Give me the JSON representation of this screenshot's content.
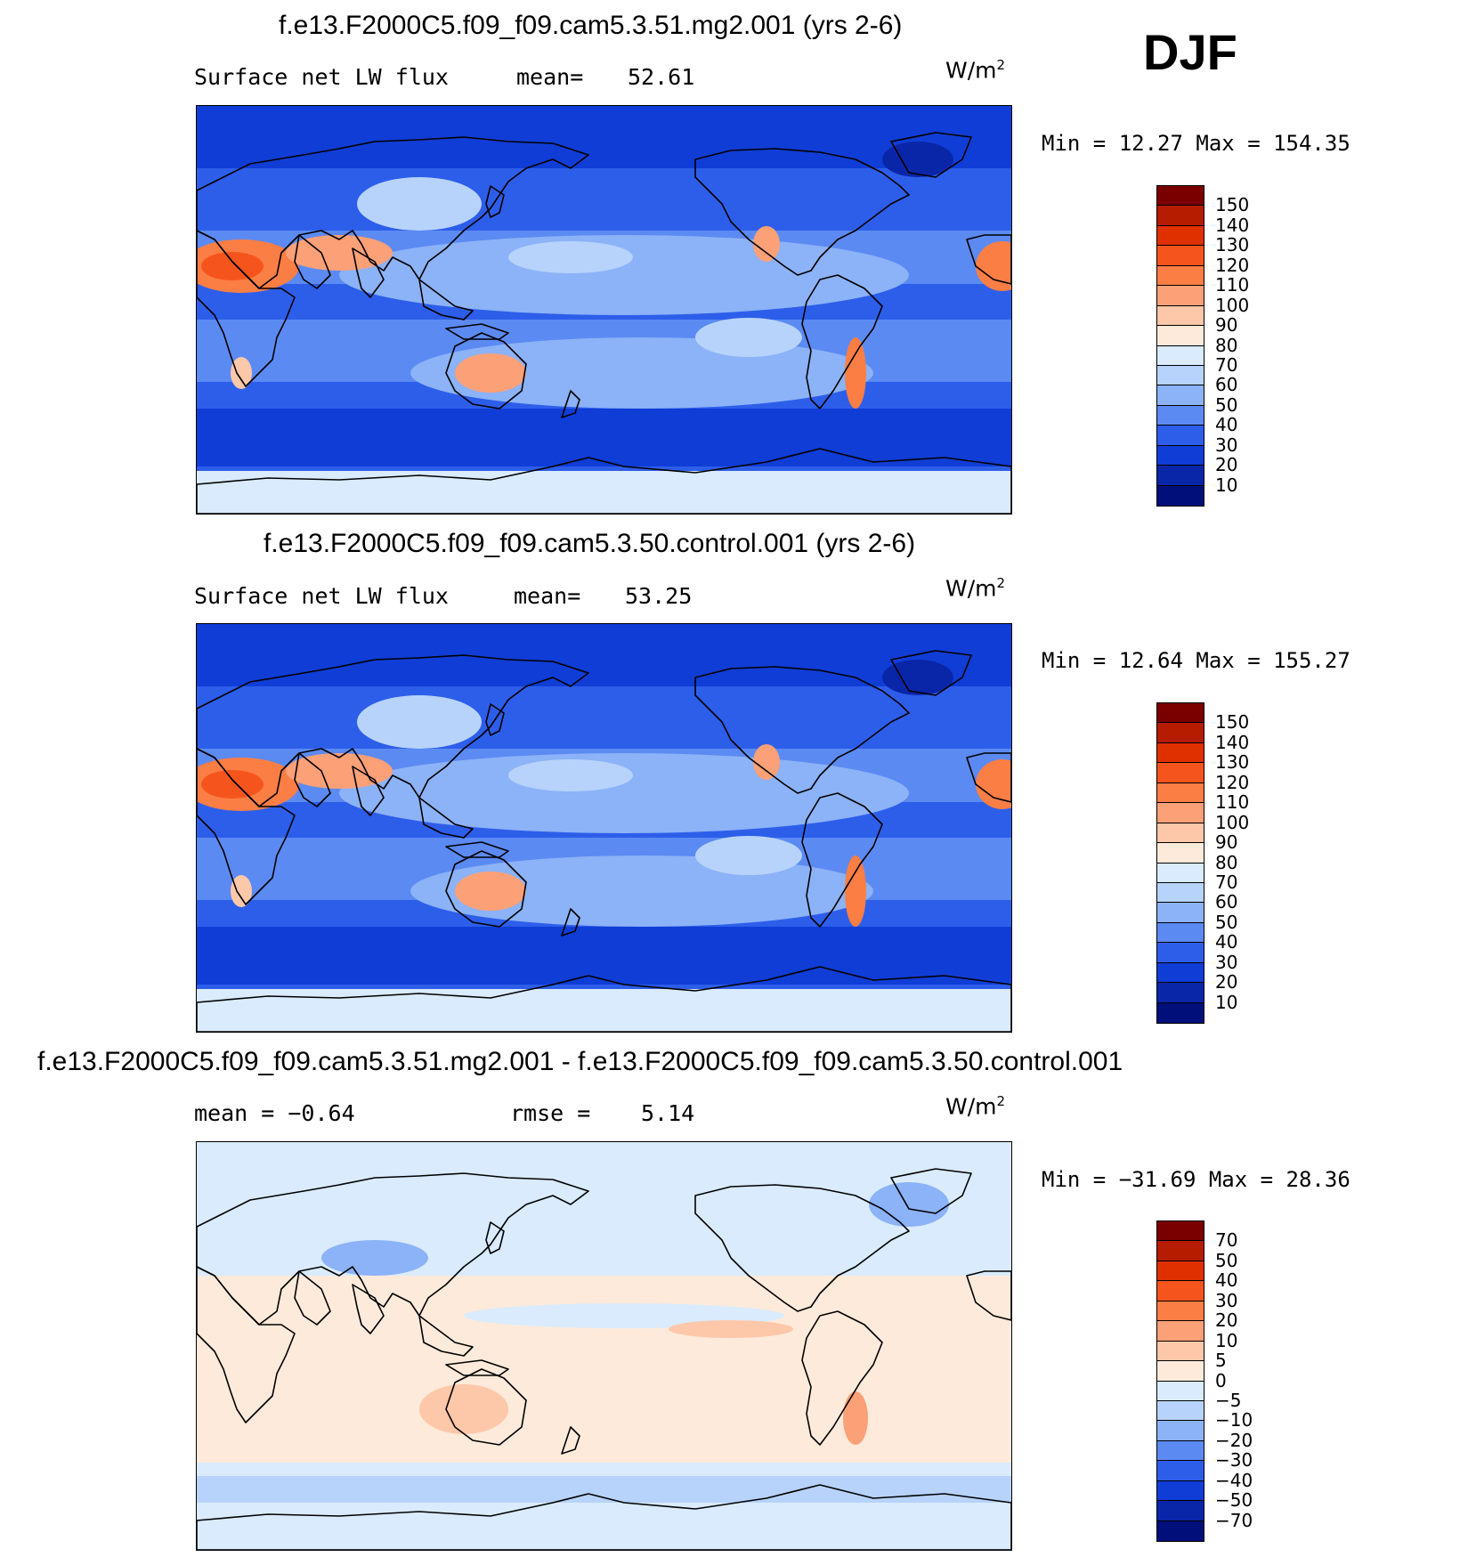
{
  "season": "DJF",
  "panels": [
    {
      "title": "f.e13.F2000C5.f09_f09.cam5.3.51.mg2.001 (yrs 2-6)",
      "left_label": "Surface net LW flux",
      "stat_label": "mean=",
      "stat_value": "52.61",
      "units": "W/m",
      "units_exp": "2",
      "minmax": "Min =   12.27 Max = 154.35",
      "colorbar_ticks": [
        "150",
        "140",
        "130",
        "120",
        "110",
        "100",
        "90",
        "80",
        "70",
        "60",
        "50",
        "40",
        "30",
        "20",
        "10"
      ],
      "colorbar_colors": [
        "#7a0000",
        "#b51c00",
        "#e03000",
        "#f5551c",
        "#fb7e44",
        "#fca077",
        "#fdc7a9",
        "#fdeadb",
        "#d9ebfc",
        "#b7d3fb",
        "#8cb2f7",
        "#5b8af2",
        "#2d5eea",
        "#0f3dd6",
        "#0a26a8",
        "#010f7a"
      ]
    },
    {
      "title": "f.e13.F2000C5.f09_f09.cam5.3.50.control.001 (yrs 2-6)",
      "left_label": "Surface net LW flux",
      "stat_label": "mean=",
      "stat_value": "53.25",
      "units": "W/m",
      "units_exp": "2",
      "minmax": "Min =   12.64 Max = 155.27",
      "colorbar_ticks": [
        "150",
        "140",
        "130",
        "120",
        "110",
        "100",
        "90",
        "80",
        "70",
        "60",
        "50",
        "40",
        "30",
        "20",
        "10"
      ],
      "colorbar_colors": [
        "#7a0000",
        "#b51c00",
        "#e03000",
        "#f5551c",
        "#fb7e44",
        "#fca077",
        "#fdc7a9",
        "#fdeadb",
        "#d9ebfc",
        "#b7d3fb",
        "#8cb2f7",
        "#5b8af2",
        "#2d5eea",
        "#0f3dd6",
        "#0a26a8",
        "#010f7a"
      ]
    },
    {
      "title": "f.e13.F2000C5.f09_f09.cam5.3.51.mg2.001 - f.e13.F2000C5.f09_f09.cam5.3.50.control.001",
      "left_label": "mean =   −0.64",
      "stat_label": "rmse =",
      "stat_value": "5.14",
      "units": "W/m",
      "units_exp": "2",
      "minmax": "Min = −31.69 Max =   28.36",
      "colorbar_ticks": [
        "70",
        "50",
        "40",
        "30",
        "20",
        "10",
        "5",
        "0",
        "−5",
        "−10",
        "−20",
        "−30",
        "−40",
        "−50",
        "−70"
      ],
      "colorbar_colors": [
        "#7a0000",
        "#b51c00",
        "#e03000",
        "#f5551c",
        "#fb7e44",
        "#fca077",
        "#fdc7a9",
        "#fdeadb",
        "#d9ebfc",
        "#b7d3fb",
        "#8cb2f7",
        "#5b8af2",
        "#2d5eea",
        "#0f3dd6",
        "#0a26a8",
        "#010f7a"
      ]
    }
  ]
}
